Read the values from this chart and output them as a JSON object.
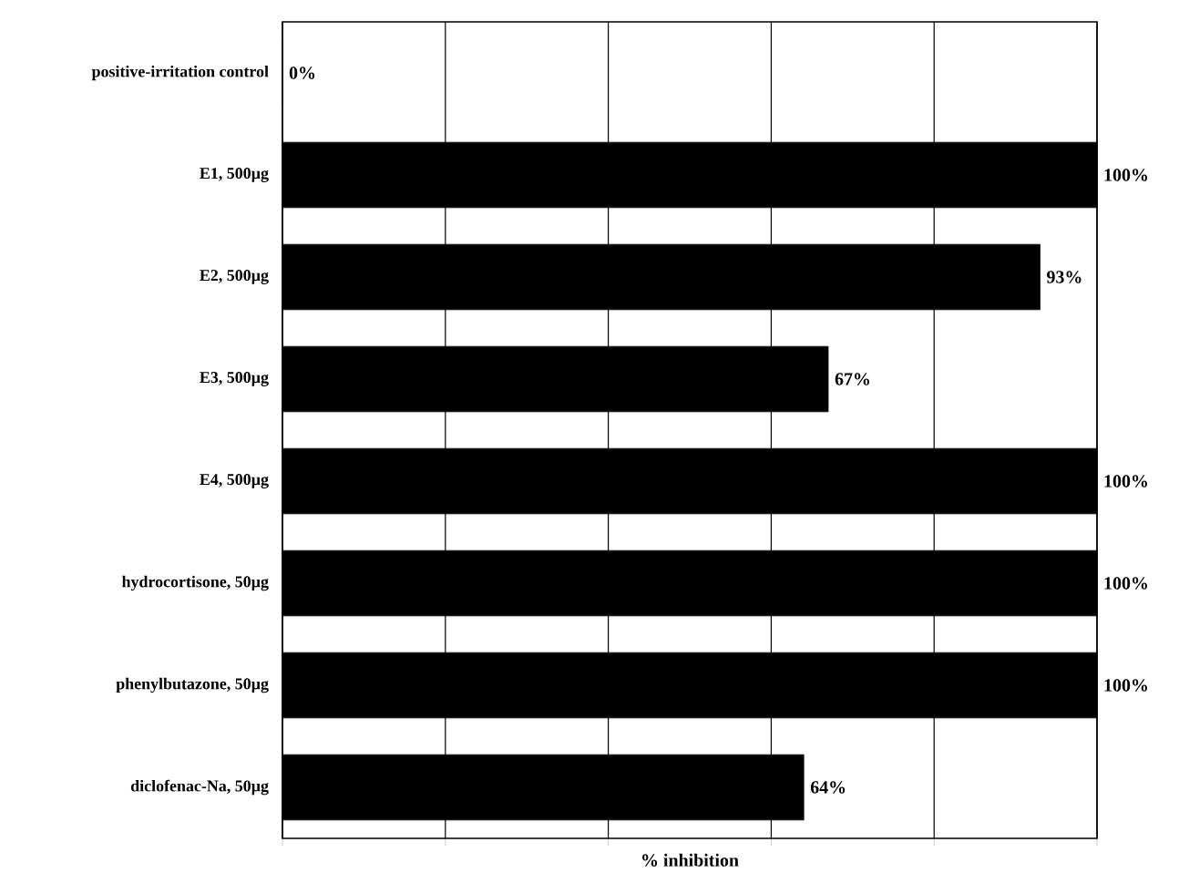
{
  "chart_data": {
    "type": "bar",
    "orientation": "horizontal",
    "xlabel": "% inhibition",
    "categories": [
      "positive-irritation control",
      "E1, 500µg",
      "E2, 500µg",
      "E3, 500µg",
      "E4, 500µg",
      "hydrocortisone, 50µg",
      "phenylbutazone, 50µg",
      "diclofenac-Na, 50µg"
    ],
    "values": [
      0,
      100,
      93,
      67,
      100,
      100,
      100,
      64
    ],
    "value_labels": [
      "0%",
      "100%",
      "93%",
      "67%",
      "100%",
      "100%",
      "100%",
      "64%"
    ],
    "color": "#000000",
    "xlim": [
      0,
      100
    ],
    "xticks": [
      {
        "value": 0,
        "label": null
      },
      {
        "value": 20,
        "label": null
      },
      {
        "value": 40,
        "label": null
      },
      {
        "value": 60,
        "label": null
      },
      {
        "value": 80,
        "label": null
      },
      {
        "value": 100,
        "label": null
      }
    ],
    "tick_labels": "y",
    "grid": "x"
  }
}
